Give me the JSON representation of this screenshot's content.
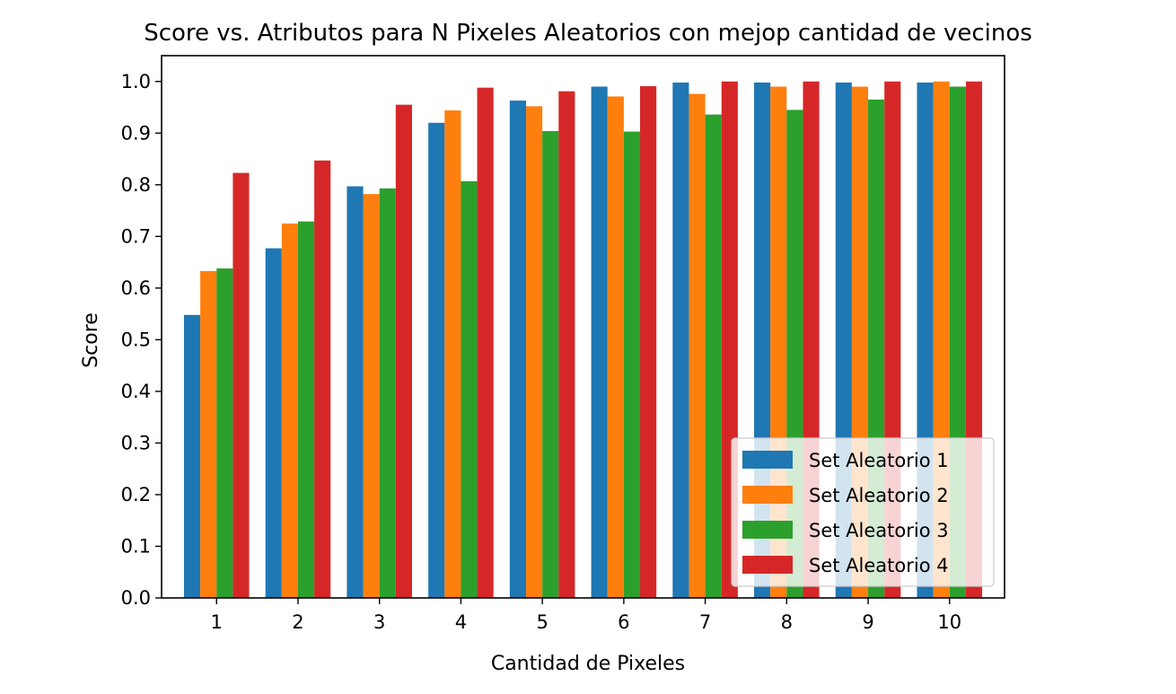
{
  "chart_data": {
    "type": "bar",
    "title": "Score vs. Atributos para N Pixeles Aleatorios con mejop cantidad de vecinos",
    "xlabel": "Cantidad de Pixeles",
    "ylabel": "Score",
    "categories": [
      "1",
      "2",
      "3",
      "4",
      "5",
      "6",
      "7",
      "8",
      "9",
      "10"
    ],
    "ylim": [
      0,
      1.05
    ],
    "yticks": [
      "0.0",
      "0.1",
      "0.2",
      "0.3",
      "0.4",
      "0.5",
      "0.6",
      "0.7",
      "0.8",
      "0.9",
      "1.0"
    ],
    "grid": false,
    "legend_position": "lower-right",
    "series": [
      {
        "name": "Set Aleatorio 1",
        "color": "#1f77b4",
        "values": [
          0.548,
          0.677,
          0.797,
          0.92,
          0.963,
          0.99,
          0.998,
          0.998,
          0.998,
          0.998
        ]
      },
      {
        "name": "Set Aleatorio 2",
        "color": "#ff7f0e",
        "values": [
          0.633,
          0.725,
          0.782,
          0.944,
          0.952,
          0.971,
          0.976,
          0.99,
          0.99,
          1.0
        ]
      },
      {
        "name": "Set Aleatorio 3",
        "color": "#2ca02c",
        "values": [
          0.638,
          0.729,
          0.793,
          0.807,
          0.904,
          0.903,
          0.936,
          0.945,
          0.965,
          0.99
        ]
      },
      {
        "name": "Set Aleatorio 4",
        "color": "#d62728",
        "values": [
          0.823,
          0.847,
          0.955,
          0.988,
          0.981,
          0.991,
          1.0,
          1.0,
          1.0,
          1.0
        ]
      }
    ]
  }
}
